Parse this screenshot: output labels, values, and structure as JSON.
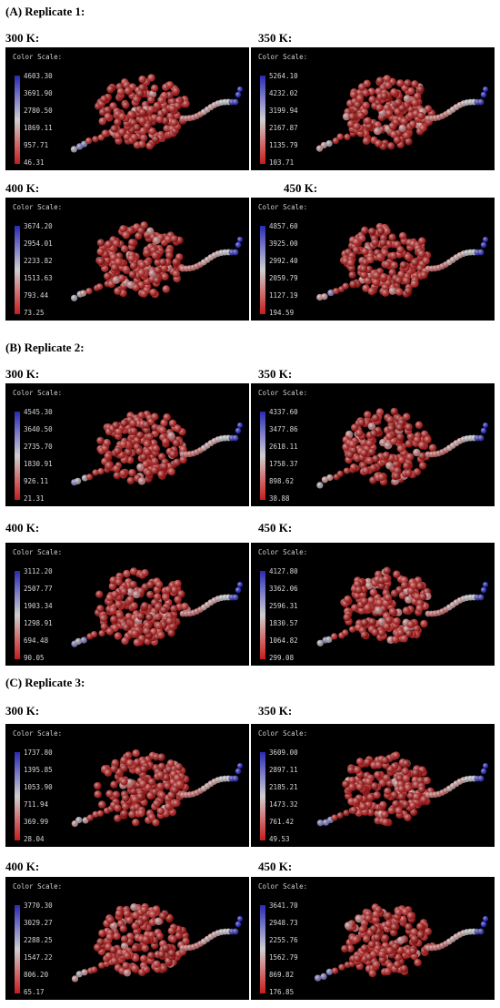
{
  "sections": [
    {
      "title": "(A) Replicate 1:",
      "panels": [
        {
          "temp": "300 K:",
          "scale_title": "Color Scale:",
          "ticks": [
            "4603.30",
            "3691.90",
            "2780.50",
            "1869.11",
            "957.71",
            "46.31"
          ]
        },
        {
          "temp": "350 K:",
          "scale_title": "Color Scale:",
          "ticks": [
            "5264.10",
            "4232.02",
            "3199.94",
            "2167.87",
            "1135.79",
            "103.71"
          ]
        },
        {
          "temp": "400 K:",
          "scale_title": "Color Scale:",
          "ticks": [
            "3674.20",
            "2954.01",
            "2233.82",
            "1513.63",
            "793.44",
            "73.25"
          ]
        },
        {
          "temp": "450 K:",
          "scale_title": "Color Scale:",
          "ticks": [
            "4857.60",
            "3925.00",
            "2992.40",
            "2059.79",
            "1127.19",
            "194.59"
          ]
        }
      ]
    },
    {
      "title": "(B) Replicate 2:",
      "panels": [
        {
          "temp": "300 K:",
          "scale_title": "Color Scale:",
          "ticks": [
            "4545.30",
            "3640.50",
            "2735.70",
            "1830.91",
            "926.11",
            "21.31"
          ]
        },
        {
          "temp": "350 K:",
          "scale_title": "Color Scale:",
          "ticks": [
            "4337.60",
            "3477.86",
            "2618.11",
            "1758.37",
            "898.62",
            "38.88"
          ]
        },
        {
          "temp": "400 K:",
          "scale_title": "Color Scale:",
          "ticks": [
            "3112.20",
            "2507.77",
            "1903.34",
            "1298.91",
            "694.48",
            "90.05"
          ]
        },
        {
          "temp": "450 K:",
          "scale_title": "Color Scale:",
          "ticks": [
            "4127.80",
            "3362.06",
            "2596.31",
            "1830.57",
            "1064.82",
            "299.08"
          ]
        }
      ]
    },
    {
      "title": "(C) Replicate 3:",
      "panels": [
        {
          "temp": "300 K:",
          "scale_title": "Color Scale:",
          "ticks": [
            "1737.80",
            "1395.85",
            "1053.90",
            "711.94",
            "369.99",
            "28.04"
          ]
        },
        {
          "temp": "350 K:",
          "scale_title": "Color Scale:",
          "ticks": [
            "3609.00",
            "2897.11",
            "2185.21",
            "1473.32",
            "761.42",
            "49.53"
          ]
        },
        {
          "temp": "400 K:",
          "scale_title": "Color Scale:",
          "ticks": [
            "3770.30",
            "3029.27",
            "2288.25",
            "1547.22",
            "806.20",
            "65.17"
          ]
        },
        {
          "temp": "450 K:",
          "scale_title": "Color Scale:",
          "ticks": [
            "3641.70",
            "2948.73",
            "2255.76",
            "1562.79",
            "869.82",
            "176.85"
          ]
        }
      ]
    }
  ],
  "colors": {
    "background": "#ffffff",
    "panel_background": "#000000",
    "scale_high": "#2a2ab4",
    "scale_mid": "#cfcfcf",
    "scale_low": "#c81c1c"
  }
}
